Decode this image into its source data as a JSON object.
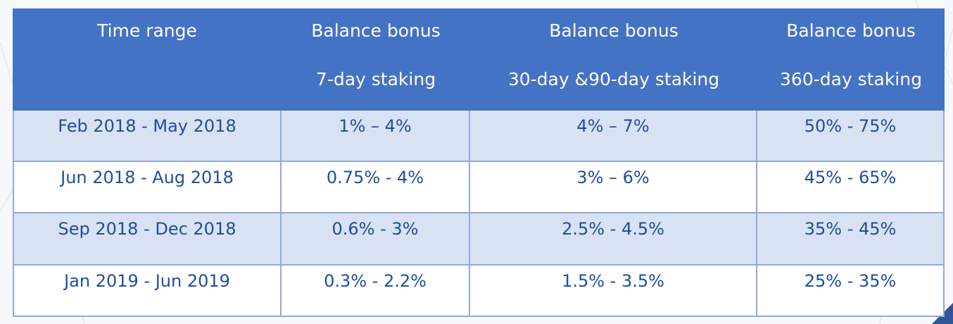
{
  "table": {
    "header": [
      [
        "Time range"
      ],
      [
        "Balance bonus",
        "7-day staking"
      ],
      [
        "Balance bonus",
        "30-day &90-day staking"
      ],
      [
        "Balance bonus",
        "360-day staking"
      ]
    ],
    "rows": [
      [
        "Feb 2018 - May 2018",
        "1% – 4%",
        "4% – 7%",
        "50% - 75%"
      ],
      [
        "Jun 2018 - Aug 2018",
        "0.75% - 4%",
        "3% – 6%",
        "45% - 65%"
      ],
      [
        "Sep 2018 - Dec 2018",
        "0.6% - 3%",
        "2.5% - 4.5%",
        "35% - 45%"
      ],
      [
        "Jan 2019 - Jun 2019",
        "0.3% - 2.2%",
        "1.5% - 3.5%",
        "25% - 35%"
      ]
    ]
  }
}
